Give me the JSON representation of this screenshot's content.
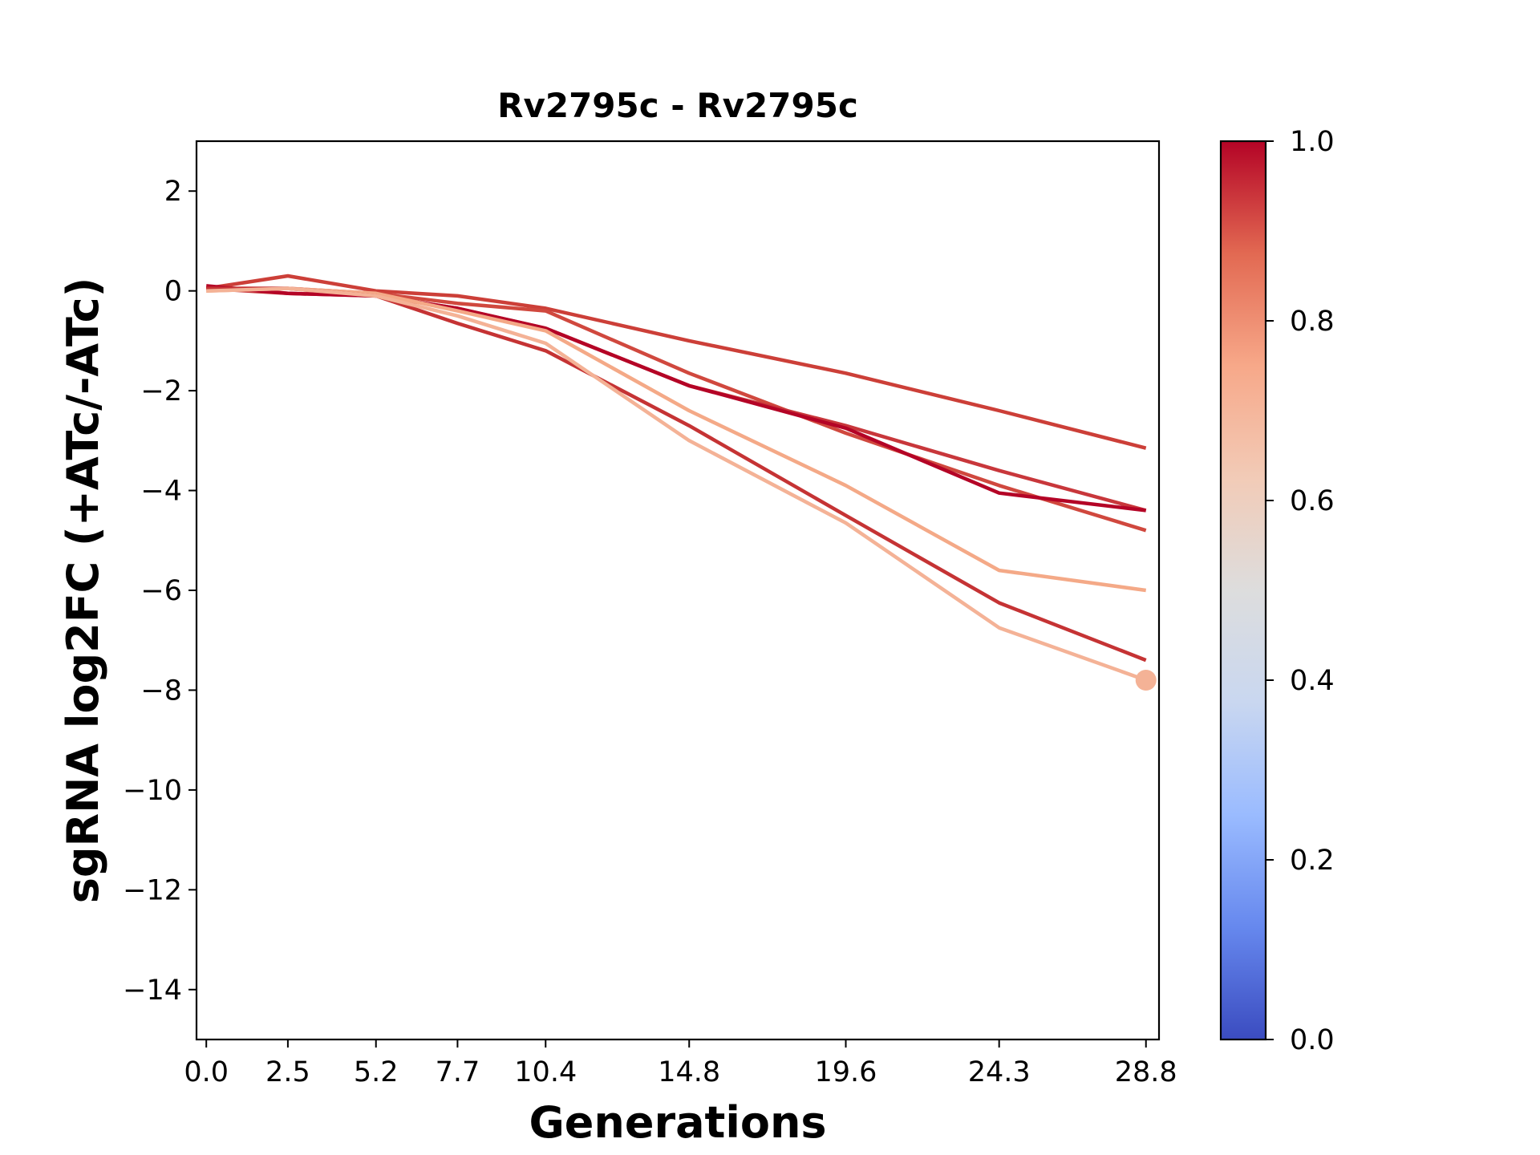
{
  "chart_data": {
    "type": "line",
    "title": "Rv2795c - Rv2795c",
    "xlabel": "Generations",
    "ylabel": "sgRNA log2FC (+ATc/-ATc)",
    "xlim": [
      -0.3,
      29.2
    ],
    "ylim": [
      -15,
      3
    ],
    "x": [
      0.0,
      2.5,
      5.2,
      7.7,
      10.4,
      14.8,
      19.6,
      24.3,
      28.8
    ],
    "xtick_labels": [
      "0.0",
      "2.5",
      "5.2",
      "7.7",
      "10.4",
      "14.8",
      "19.6",
      "24.3",
      "28.8"
    ],
    "yticks": [
      2,
      0,
      -2,
      -4,
      -6,
      -8,
      -10,
      -12,
      -14
    ],
    "ytick_labels": [
      "2",
      "0",
      "−2",
      "−4",
      "−6",
      "−8",
      "−10",
      "−12",
      "−14"
    ],
    "grid": false,
    "series": [
      {
        "color": "#cc3f38",
        "values": [
          0.05,
          0.3,
          0.0,
          -0.1,
          -0.35,
          -1.0,
          -1.65,
          -2.4,
          -3.15
        ]
      },
      {
        "color": "#d0483e",
        "values": [
          0.05,
          0.05,
          -0.05,
          -0.25,
          -0.4,
          -1.65,
          -2.85,
          -3.9,
          -4.8
        ]
      },
      {
        "color": "#c8373b",
        "values": [
          0.05,
          -0.05,
          -0.1,
          -0.35,
          -0.75,
          -1.9,
          -2.7,
          -3.6,
          -4.4
        ]
      },
      {
        "color": "#b40426",
        "values": [
          0.1,
          -0.05,
          -0.1,
          -0.35,
          -0.75,
          -1.9,
          -2.75,
          -4.05,
          -4.4
        ]
      },
      {
        "color": "#f4a987",
        "values": [
          0.0,
          0.05,
          -0.05,
          -0.4,
          -0.8,
          -2.4,
          -3.9,
          -5.6,
          -6.0
        ]
      },
      {
        "color": "#c53334",
        "values": [
          0.05,
          0.05,
          -0.1,
          -0.65,
          -1.2,
          -2.7,
          -4.5,
          -6.25,
          -7.4
        ]
      },
      {
        "color": "#f4b296",
        "values": [
          0.0,
          0.05,
          -0.1,
          -0.5,
          -1.05,
          -3.0,
          -4.65,
          -6.75,
          -7.8
        ]
      }
    ],
    "marker": {
      "x": 28.8,
      "y": -7.8,
      "color": "#f4b296"
    },
    "colorbar": {
      "colormap": "coolwarm",
      "range": [
        0.0,
        1.0
      ],
      "ticks": [
        0.0,
        0.2,
        0.4,
        0.6,
        0.8,
        1.0
      ],
      "tick_labels": [
        "0.0",
        "0.2",
        "0.4",
        "0.6",
        "0.8",
        "1.0"
      ],
      "stops": [
        "#3b4cc0",
        "#6688ee",
        "#9abbff",
        "#c9d7f0",
        "#dddddd",
        "#f2cbb7",
        "#f7a889",
        "#e26952",
        "#b40426"
      ]
    }
  }
}
